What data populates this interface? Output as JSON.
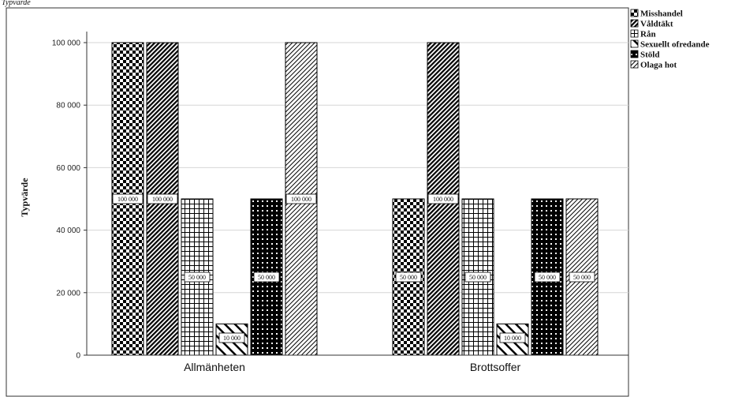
{
  "corner_label": "Typvärde",
  "chart_data": {
    "type": "bar",
    "title": "",
    "xlabel": "",
    "ylabel": "Typvärde",
    "ylim": [
      0,
      110000
    ],
    "yticks": [
      0,
      20000,
      40000,
      60000,
      80000,
      100000
    ],
    "ytick_labels": [
      "0",
      "20 000",
      "40 000",
      "60 000",
      "80 000",
      "100 000"
    ],
    "grid": "horizontal",
    "legend_position": "top-right outside",
    "categories": [
      "Allmänheten",
      "Brottsoffer"
    ],
    "series": [
      {
        "name": "Misshandel",
        "values": [
          100000,
          50000
        ],
        "labels": [
          "100 000",
          "50 000"
        ]
      },
      {
        "name": "Våldtäkt",
        "values": [
          100000,
          100000
        ],
        "labels": [
          "100 000",
          "100 000"
        ]
      },
      {
        "name": "Rån",
        "values": [
          50000,
          50000
        ],
        "labels": [
          "50 000",
          "50 000"
        ]
      },
      {
        "name": "Sexuellt ofredande",
        "values": [
          10000,
          10000
        ],
        "labels": [
          "10 000",
          "10 000"
        ]
      },
      {
        "name": "Stöld",
        "values": [
          50000,
          50000
        ],
        "labels": [
          "50 000",
          "50 000"
        ]
      },
      {
        "name": "Olaga hot",
        "values": [
          100000,
          50000
        ],
        "labels": [
          "100 000",
          "50 000"
        ]
      }
    ],
    "patterns": [
      "checker",
      "diagonal-dense",
      "grid",
      "diagonal-wide",
      "white-grid-on-black",
      "diagonal-light"
    ]
  }
}
